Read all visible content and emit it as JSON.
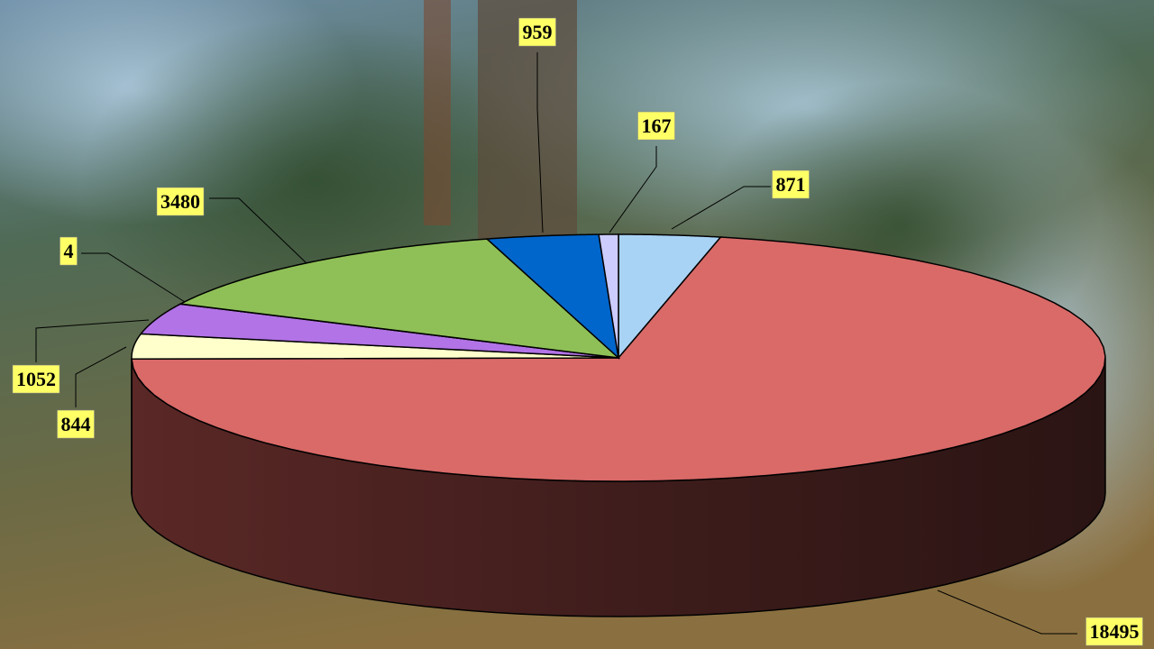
{
  "chart_data": {
    "type": "pie3d",
    "categories": [
      null,
      null,
      null,
      null,
      null,
      null,
      null,
      null
    ],
    "values": [
      871,
      18495,
      844,
      1052,
      4,
      3480,
      959,
      167
    ],
    "colors": [
      "#a9d3f5",
      "#d96a68",
      "#ffffcc",
      "#b273e6",
      "#6b3fa0",
      "#8fc057",
      "#0066cc",
      "#ccccff"
    ]
  }
}
